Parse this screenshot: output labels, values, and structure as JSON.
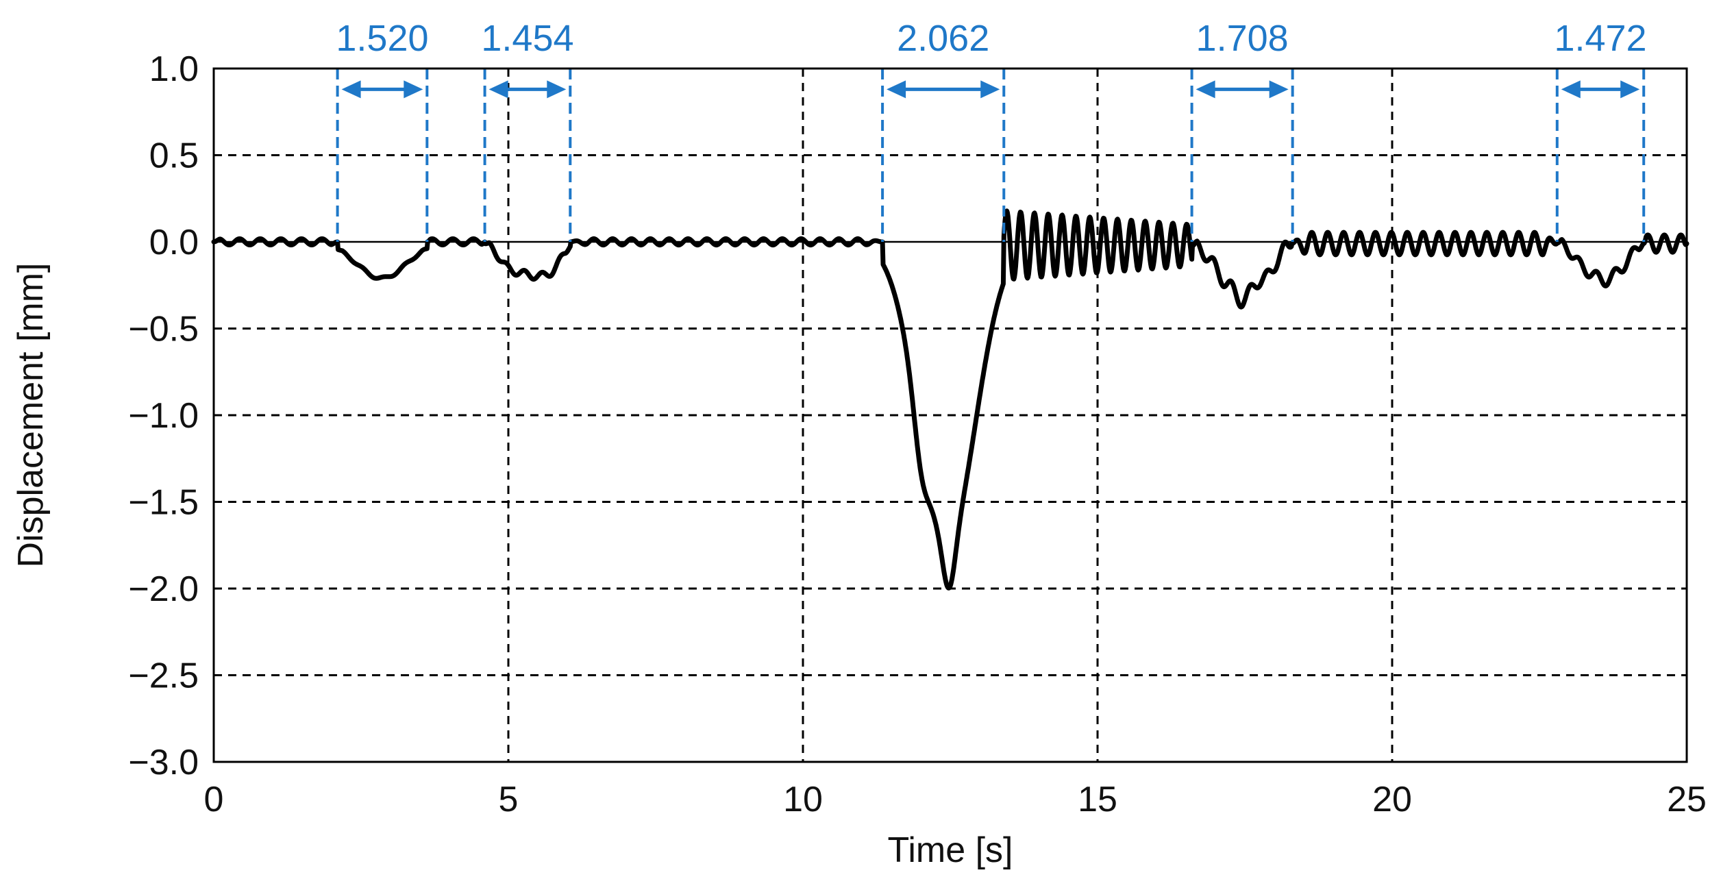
{
  "chart_data": {
    "type": "line",
    "title": "",
    "xlabel": "Time [s]",
    "ylabel": "Displacement [mm]",
    "xlim": [
      0,
      25
    ],
    "ylim": [
      -3.0,
      1.0
    ],
    "xticks": [
      0,
      5,
      10,
      15,
      20,
      25
    ],
    "yticks": [
      1.0,
      0.5,
      0.0,
      -0.5,
      -1.0,
      -1.5,
      -2.0,
      -2.5,
      -3.0
    ],
    "x_tick_labels": [
      "0",
      "5",
      "10",
      "15",
      "20",
      "25"
    ],
    "y_tick_labels": [
      "1.0",
      "0.5",
      "0.0",
      "−0.5",
      "−1.0",
      "−1.5",
      "−2.0",
      "−2.5",
      "−3.0"
    ],
    "grid": true,
    "colors": {
      "line": "#000000",
      "annotation": "#1f78c8",
      "grid": "#000000"
    },
    "series": [
      {
        "name": "",
        "segments": [
          {
            "from": 0.0,
            "to": 2.1,
            "baseline": 0.0,
            "amp": 0.018,
            "period": 0.35,
            "dips": []
          },
          {
            "from": 2.1,
            "to": 3.62,
            "baseline": 0.0,
            "amp": 0.008,
            "period": 0.35,
            "dips": [
              {
                "center": 2.85,
                "depth": 0.21,
                "width": 0.42
              }
            ]
          },
          {
            "from": 3.62,
            "to": 4.6,
            "baseline": 0.0,
            "amp": 0.018,
            "period": 0.35,
            "dips": []
          },
          {
            "from": 4.6,
            "to": 6.05,
            "baseline": 0.0,
            "amp": 0.02,
            "period": 0.3,
            "dips": [
              {
                "center": 5.0,
                "depth": 0.12,
                "width": 0.18
              },
              {
                "center": 5.4,
                "depth": 0.17,
                "width": 0.22
              },
              {
                "center": 5.75,
                "depth": 0.12,
                "width": 0.17
              }
            ]
          },
          {
            "from": 6.05,
            "to": 11.35,
            "baseline": 0.0,
            "amp": 0.018,
            "period": 0.32,
            "dips": []
          },
          {
            "from": 11.35,
            "to": 13.4,
            "baseline": 0.0,
            "amp": 0.0,
            "period": 1.0,
            "dips": [
              {
                "center": 12.45,
                "depth": 1.72,
                "width": 0.48
              },
              {
                "center": 12.48,
                "depth": 0.28,
                "width": 0.1
              },
              {
                "center": 12.0,
                "depth": 0.22,
                "width": 0.12
              }
            ]
          },
          {
            "from": 13.4,
            "to": 16.6,
            "baseline": -0.02,
            "amp": 0.2,
            "ampDecayTo": 0.12,
            "period": 0.235,
            "dips": []
          },
          {
            "from": 16.6,
            "to": 18.3,
            "baseline": -0.02,
            "amp": 0.04,
            "period": 0.3,
            "dips": [
              {
                "center": 17.2,
                "depth": 0.2,
                "width": 0.22
              },
              {
                "center": 17.5,
                "depth": 0.22,
                "width": 0.14
              },
              {
                "center": 17.85,
                "depth": 0.18,
                "width": 0.16
              }
            ]
          },
          {
            "from": 18.3,
            "to": 22.8,
            "baseline": -0.01,
            "amp": 0.065,
            "period": 0.27,
            "dips": []
          },
          {
            "from": 22.8,
            "to": 24.27,
            "baseline": 0.0,
            "amp": 0.03,
            "period": 0.3,
            "dips": [
              {
                "center": 23.3,
                "depth": 0.15,
                "width": 0.2
              },
              {
                "center": 23.65,
                "depth": 0.18,
                "width": 0.16
              },
              {
                "center": 23.95,
                "depth": 0.1,
                "width": 0.14
              }
            ]
          },
          {
            "from": 24.27,
            "to": 25.0,
            "baseline": -0.01,
            "amp": 0.05,
            "period": 0.28,
            "dips": []
          }
        ]
      }
    ],
    "annotations": [
      {
        "label": "1.520",
        "x_start": 2.1,
        "x_end": 3.62
      },
      {
        "label": "1.454",
        "x_start": 4.6,
        "x_end": 6.05
      },
      {
        "label": "2.062",
        "x_start": 11.35,
        "x_end": 13.41
      },
      {
        "label": "1.708",
        "x_start": 16.6,
        "x_end": 18.31
      },
      {
        "label": "1.472",
        "x_start": 22.8,
        "x_end": 24.27
      }
    ]
  }
}
